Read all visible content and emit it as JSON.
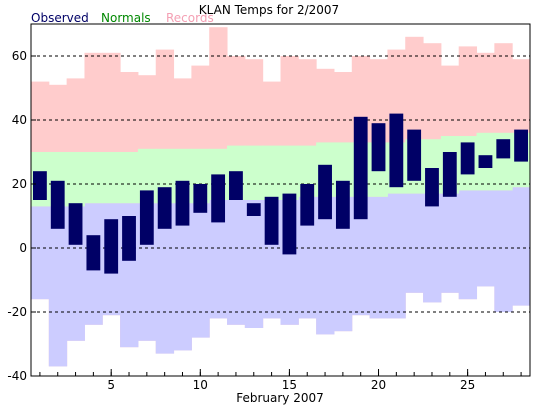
{
  "colors": {
    "observed": "#000066",
    "normals": "#008800",
    "records": "#f4a0b4",
    "record_band": "#ffcccc",
    "normal_band": "#ccffcc",
    "low_band": "#ccccff",
    "axis": "#000000"
  },
  "chart_data": {
    "type": "bar",
    "title": "KLAN Temps for 2/2007",
    "xlabel": "February 2007",
    "ylabel": "",
    "xlim": [
      0.5,
      28.5
    ],
    "ylim": [
      -40,
      70
    ],
    "yticks": [
      -40,
      -20,
      0,
      20,
      40,
      60
    ],
    "xticks": [
      5,
      10,
      15,
      20,
      25
    ],
    "grid": "dashed horizontal at y ticks",
    "legend": {
      "placement": "top-left",
      "entries": [
        "Observed",
        "Normals",
        "Records"
      ]
    },
    "days": [
      1,
      2,
      3,
      4,
      5,
      6,
      7,
      8,
      9,
      10,
      11,
      12,
      13,
      14,
      15,
      16,
      17,
      18,
      19,
      20,
      21,
      22,
      23,
      24,
      25,
      26,
      27,
      28
    ],
    "series": [
      {
        "name": "Records",
        "kind": "band",
        "high": [
          52,
          51,
          53,
          61,
          61,
          55,
          54,
          62,
          53,
          57,
          69,
          60,
          59,
          52,
          60,
          59,
          56,
          55,
          60,
          59,
          62,
          66,
          64,
          57,
          63,
          61,
          64,
          59
        ],
        "low": [
          -16,
          -37,
          -29,
          -24,
          -21,
          -31,
          -29,
          -33,
          -32,
          -28,
          -22,
          -24,
          -25,
          -22,
          -24,
          -22,
          -27,
          -26,
          -21,
          -22,
          -22,
          -14,
          -17,
          -14,
          -16,
          -12,
          -20,
          -18
        ]
      },
      {
        "name": "Normals",
        "kind": "band",
        "high": [
          30,
          30,
          30,
          30,
          30,
          30,
          31,
          31,
          31,
          31,
          31,
          32,
          32,
          32,
          32,
          32,
          33,
          33,
          33,
          33,
          33,
          34,
          34,
          35,
          35,
          36,
          36,
          36
        ],
        "low": [
          13,
          13,
          13,
          14,
          14,
          14,
          14,
          14,
          14,
          14,
          15,
          15,
          15,
          15,
          15,
          16,
          16,
          16,
          16,
          16,
          17,
          17,
          17,
          17,
          18,
          18,
          18,
          19
        ]
      },
      {
        "name": "Observed",
        "kind": "range-bar",
        "high": [
          24,
          21,
          14,
          4,
          9,
          10,
          18,
          19,
          21,
          20,
          23,
          24,
          14,
          16,
          17,
          20,
          26,
          21,
          41,
          39,
          42,
          37,
          25,
          30,
          33,
          29,
          34,
          37
        ],
        "low": [
          15,
          6,
          1,
          -7,
          -8,
          -4,
          1,
          6,
          7,
          11,
          8,
          15,
          10,
          1,
          -2,
          7,
          9,
          6,
          9,
          24,
          19,
          21,
          13,
          16,
          23,
          25,
          28,
          27
        ]
      }
    ]
  }
}
